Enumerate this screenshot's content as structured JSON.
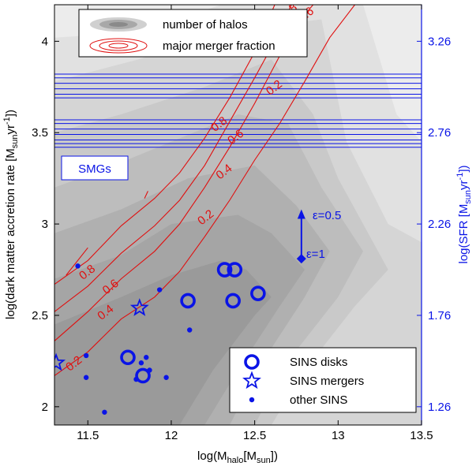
{
  "chart_data": {
    "type": "scatter",
    "xlabel_main": "log(M",
    "xlabel_sub1": "halo",
    "xlabel_mid": "[M",
    "xlabel_sub2": "sun",
    "xlabel_end": "])",
    "ylabel_left": "log(dark matter accretion rate [M",
    "ylabel_left_sub": "sun",
    "ylabel_left_mid": "yr",
    "ylabel_left_sup": "-1",
    "ylabel_left_end": "])",
    "ylabel_right": "log(SFR [M",
    "ylabel_right_sub": "sun",
    "ylabel_right_mid": "yr",
    "ylabel_right_sup": "-1",
    "ylabel_right_end": "])",
    "xlim": [
      11.3,
      13.5
    ],
    "ylim": [
      1.9,
      4.2
    ],
    "x_ticks": [
      11.5,
      12,
      12.5,
      13,
      13.5
    ],
    "x_tick_labels": [
      "11.5",
      "12",
      "12.5",
      "13",
      "13.5"
    ],
    "y_ticks": [
      2,
      2.5,
      3,
      3.5,
      4
    ],
    "y_tick_labels": [
      "2",
      "2.5",
      "3",
      "3.5",
      "4"
    ],
    "right_y_ticks": [
      2.0,
      2.5,
      3.0,
      3.5,
      4.0
    ],
    "right_y_tick_labels": [
      "1.26",
      "1.76",
      "2.26",
      "2.76",
      "3.26"
    ],
    "accent_color": "#0a14e6",
    "merger_color": "#e01010",
    "halo_shades": [
      "#ececec",
      "#e1e1e1",
      "#d5d5d5",
      "#c9c9c9",
      "#bdbdbd",
      "#b0b0b0",
      "#a5a5a5",
      "#9a9a9a"
    ],
    "legend_top": [
      {
        "label": "number of halos",
        "icon": "gray-ellipses-icon"
      },
      {
        "label": "major merger fraction",
        "icon": "red-ellipses-icon"
      }
    ],
    "legend_bottom": [
      {
        "label": "SINS disks",
        "icon": "ring-marker-icon"
      },
      {
        "label": "SINS mergers",
        "icon": "star-marker-icon"
      },
      {
        "label": "other SINS",
        "icon": "dot-marker-icon"
      }
    ],
    "smg_label": "SMGs",
    "smg_lines": [
      3.42,
      3.44,
      3.46,
      3.49,
      3.52,
      3.55,
      3.57,
      3.69,
      3.71,
      3.74,
      3.77,
      3.8,
      3.82
    ],
    "epsilon_high_label": "ε=0.5",
    "epsilon_low_label": "ε=1",
    "epsilon_point": {
      "x": 12.78,
      "y": 2.81
    },
    "epsilon_arrow": {
      "x": 12.78,
      "y0": 2.82,
      "y1": 3.08
    },
    "halo_bands": [
      {
        "lo": [
          [
            11.3,
            1.9
          ],
          [
            13.5,
            1.9
          ]
        ],
        "hi": [
          [
            11.3,
            4.2
          ],
          [
            13.5,
            4.2
          ]
        ]
      },
      {
        "lo": [
          [
            11.3,
            1.9
          ],
          [
            13.5,
            1.9
          ]
        ],
        "hi": [
          [
            11.3,
            4.02
          ],
          [
            11.8,
            4.05
          ],
          [
            12.3,
            4.2
          ],
          [
            13.15,
            4.2
          ],
          [
            13.35,
            3.6
          ],
          [
            13.5,
            3.45
          ]
        ]
      },
      {
        "lo": [
          [
            11.3,
            1.9
          ],
          [
            13.5,
            1.9
          ]
        ],
        "hi": [
          [
            11.3,
            3.78
          ],
          [
            11.8,
            3.9
          ],
          [
            12.3,
            4.05
          ],
          [
            12.9,
            4.12
          ],
          [
            13.05,
            3.45
          ],
          [
            13.3,
            3.0
          ],
          [
            13.5,
            2.9
          ]
        ]
      },
      {
        "lo": [
          [
            11.3,
            1.9
          ],
          [
            12.6,
            1.9
          ],
          [
            12.8,
            2.2
          ],
          [
            13.1,
            2.55
          ],
          [
            13.3,
            2.75
          ]
        ],
        "hi": [
          [
            11.3,
            3.5
          ],
          [
            11.7,
            3.6
          ],
          [
            12.2,
            3.75
          ],
          [
            12.6,
            3.9
          ],
          [
            12.85,
            3.6
          ],
          [
            13.0,
            3.25
          ],
          [
            13.3,
            2.75
          ]
        ]
      },
      {
        "lo": [
          [
            11.3,
            1.9
          ],
          [
            12.5,
            1.9
          ],
          [
            12.7,
            2.25
          ],
          [
            13.0,
            2.6
          ],
          [
            13.15,
            2.85
          ]
        ],
        "hi": [
          [
            11.3,
            3.2
          ],
          [
            11.6,
            3.3
          ],
          [
            12.0,
            3.45
          ],
          [
            12.4,
            3.6
          ],
          [
            12.7,
            3.55
          ],
          [
            12.9,
            3.2
          ],
          [
            13.15,
            2.85
          ]
        ]
      },
      {
        "lo": [
          [
            11.3,
            1.9
          ],
          [
            12.35,
            1.9
          ],
          [
            12.55,
            2.25
          ],
          [
            12.8,
            2.6
          ],
          [
            12.95,
            2.85
          ]
        ],
        "hi": [
          [
            11.3,
            2.95
          ],
          [
            11.7,
            3.08
          ],
          [
            12.1,
            3.25
          ],
          [
            12.5,
            3.32
          ],
          [
            12.75,
            3.1
          ],
          [
            12.95,
            2.85
          ]
        ]
      },
      {
        "lo": [
          [
            11.3,
            1.9
          ],
          [
            12.2,
            1.9
          ],
          [
            12.4,
            2.2
          ],
          [
            12.65,
            2.55
          ],
          [
            12.8,
            2.75
          ]
        ],
        "hi": [
          [
            11.3,
            2.7
          ],
          [
            11.7,
            2.83
          ],
          [
            12.0,
            3.0
          ],
          [
            12.4,
            3.05
          ],
          [
            12.6,
            2.95
          ],
          [
            12.8,
            2.75
          ]
        ]
      },
      {
        "lo": [
          [
            11.3,
            1.9
          ],
          [
            12.05,
            1.9
          ],
          [
            12.25,
            2.2
          ],
          [
            12.5,
            2.5
          ],
          [
            12.6,
            2.6
          ]
        ],
        "hi": [
          [
            11.3,
            2.45
          ],
          [
            11.7,
            2.6
          ],
          [
            12.0,
            2.72
          ],
          [
            12.3,
            2.8
          ],
          [
            12.45,
            2.75
          ],
          [
            12.6,
            2.6
          ]
        ]
      }
    ],
    "merger_contours": [
      {
        "level": "0.2",
        "points": [
          [
            11.3,
            2.17
          ],
          [
            11.5,
            2.3
          ],
          [
            11.7,
            2.48
          ],
          [
            11.9,
            2.6
          ],
          [
            12.05,
            2.74
          ],
          [
            12.2,
            2.93
          ],
          [
            12.35,
            3.13
          ],
          [
            12.5,
            3.35
          ],
          [
            12.65,
            3.55
          ],
          [
            12.8,
            3.78
          ],
          [
            12.95,
            4.02
          ],
          [
            13.1,
            4.2
          ]
        ],
        "label_at": [
          11.43,
          2.22
        ],
        "label2_at": [
          12.22,
          3.02
        ],
        "label3_at": [
          12.63,
          3.73
        ]
      },
      {
        "level": "0.4",
        "points": [
          [
            11.3,
            2.36
          ],
          [
            11.5,
            2.52
          ],
          [
            11.7,
            2.7
          ],
          [
            11.9,
            2.85
          ],
          [
            12.05,
            3.0
          ],
          [
            12.2,
            3.2
          ],
          [
            12.35,
            3.42
          ],
          [
            12.5,
            3.66
          ],
          [
            12.65,
            3.92
          ],
          [
            12.75,
            4.09
          ],
          [
            12.85,
            4.2
          ]
        ],
        "label_at": [
          11.62,
          2.5
        ],
        "label2_at": [
          12.33,
          3.27
        ],
        "label3_at": [
          12.67,
          4.02
        ]
      },
      {
        "level": "0.6",
        "points": [
          [
            11.3,
            2.52
          ],
          [
            11.5,
            2.66
          ],
          [
            11.7,
            2.84
          ],
          [
            11.9,
            2.99
          ],
          [
            12.05,
            3.13
          ],
          [
            12.2,
            3.32
          ],
          [
            12.35,
            3.56
          ],
          [
            12.5,
            3.8
          ],
          [
            12.65,
            4.05
          ],
          [
            12.72,
            4.2
          ]
        ],
        "label_at": [
          11.65,
          2.64
        ],
        "label2_at": [
          12.4,
          3.46
        ],
        "label3_at": [
          12.82,
          4.13
        ]
      },
      {
        "level": "0.8",
        "points": [
          [
            11.3,
            2.67
          ],
          [
            11.5,
            2.8
          ],
          [
            11.7,
            2.99
          ],
          [
            11.9,
            3.14
          ],
          [
            12.05,
            3.28
          ],
          [
            12.2,
            3.47
          ],
          [
            12.35,
            3.69
          ],
          [
            12.5,
            3.94
          ],
          [
            12.62,
            4.2
          ]
        ],
        "label_at": [
          11.51,
          2.72
        ],
        "label2_at": [
          12.3,
          3.53
        ],
        "label3_at": [
          12.72,
          4.15
        ]
      }
    ],
    "merger_contour_labels": [
      "0.2",
      "0.4",
      "0.6",
      "0.8"
    ],
    "merger_extra_segments": [
      [
        [
          11.37,
          2.72
        ],
        [
          11.5,
          2.87
        ]
      ],
      [
        [
          11.84,
          3.14
        ],
        [
          11.86,
          3.18
        ]
      ]
    ],
    "sins_disks": [
      {
        "x": 11.74,
        "y": 2.27
      },
      {
        "x": 11.83,
        "y": 2.17
      },
      {
        "x": 12.1,
        "y": 2.58
      },
      {
        "x": 12.32,
        "y": 2.75
      },
      {
        "x": 12.38,
        "y": 2.75
      },
      {
        "x": 12.37,
        "y": 2.58
      },
      {
        "x": 12.52,
        "y": 2.62
      }
    ],
    "sins_mergers": [
      {
        "x": 11.31,
        "y": 2.24
      },
      {
        "x": 11.81,
        "y": 2.54
      }
    ],
    "other_sins": [
      {
        "x": 11.44,
        "y": 2.77
      },
      {
        "x": 11.49,
        "y": 2.28
      },
      {
        "x": 11.49,
        "y": 2.16
      },
      {
        "x": 11.6,
        "y": 1.97
      },
      {
        "x": 11.79,
        "y": 2.15
      },
      {
        "x": 11.82,
        "y": 2.24
      },
      {
        "x": 11.85,
        "y": 2.27
      },
      {
        "x": 11.87,
        "y": 2.2
      },
      {
        "x": 11.93,
        "y": 2.64
      },
      {
        "x": 11.97,
        "y": 2.16
      },
      {
        "x": 12.11,
        "y": 2.42
      }
    ]
  }
}
